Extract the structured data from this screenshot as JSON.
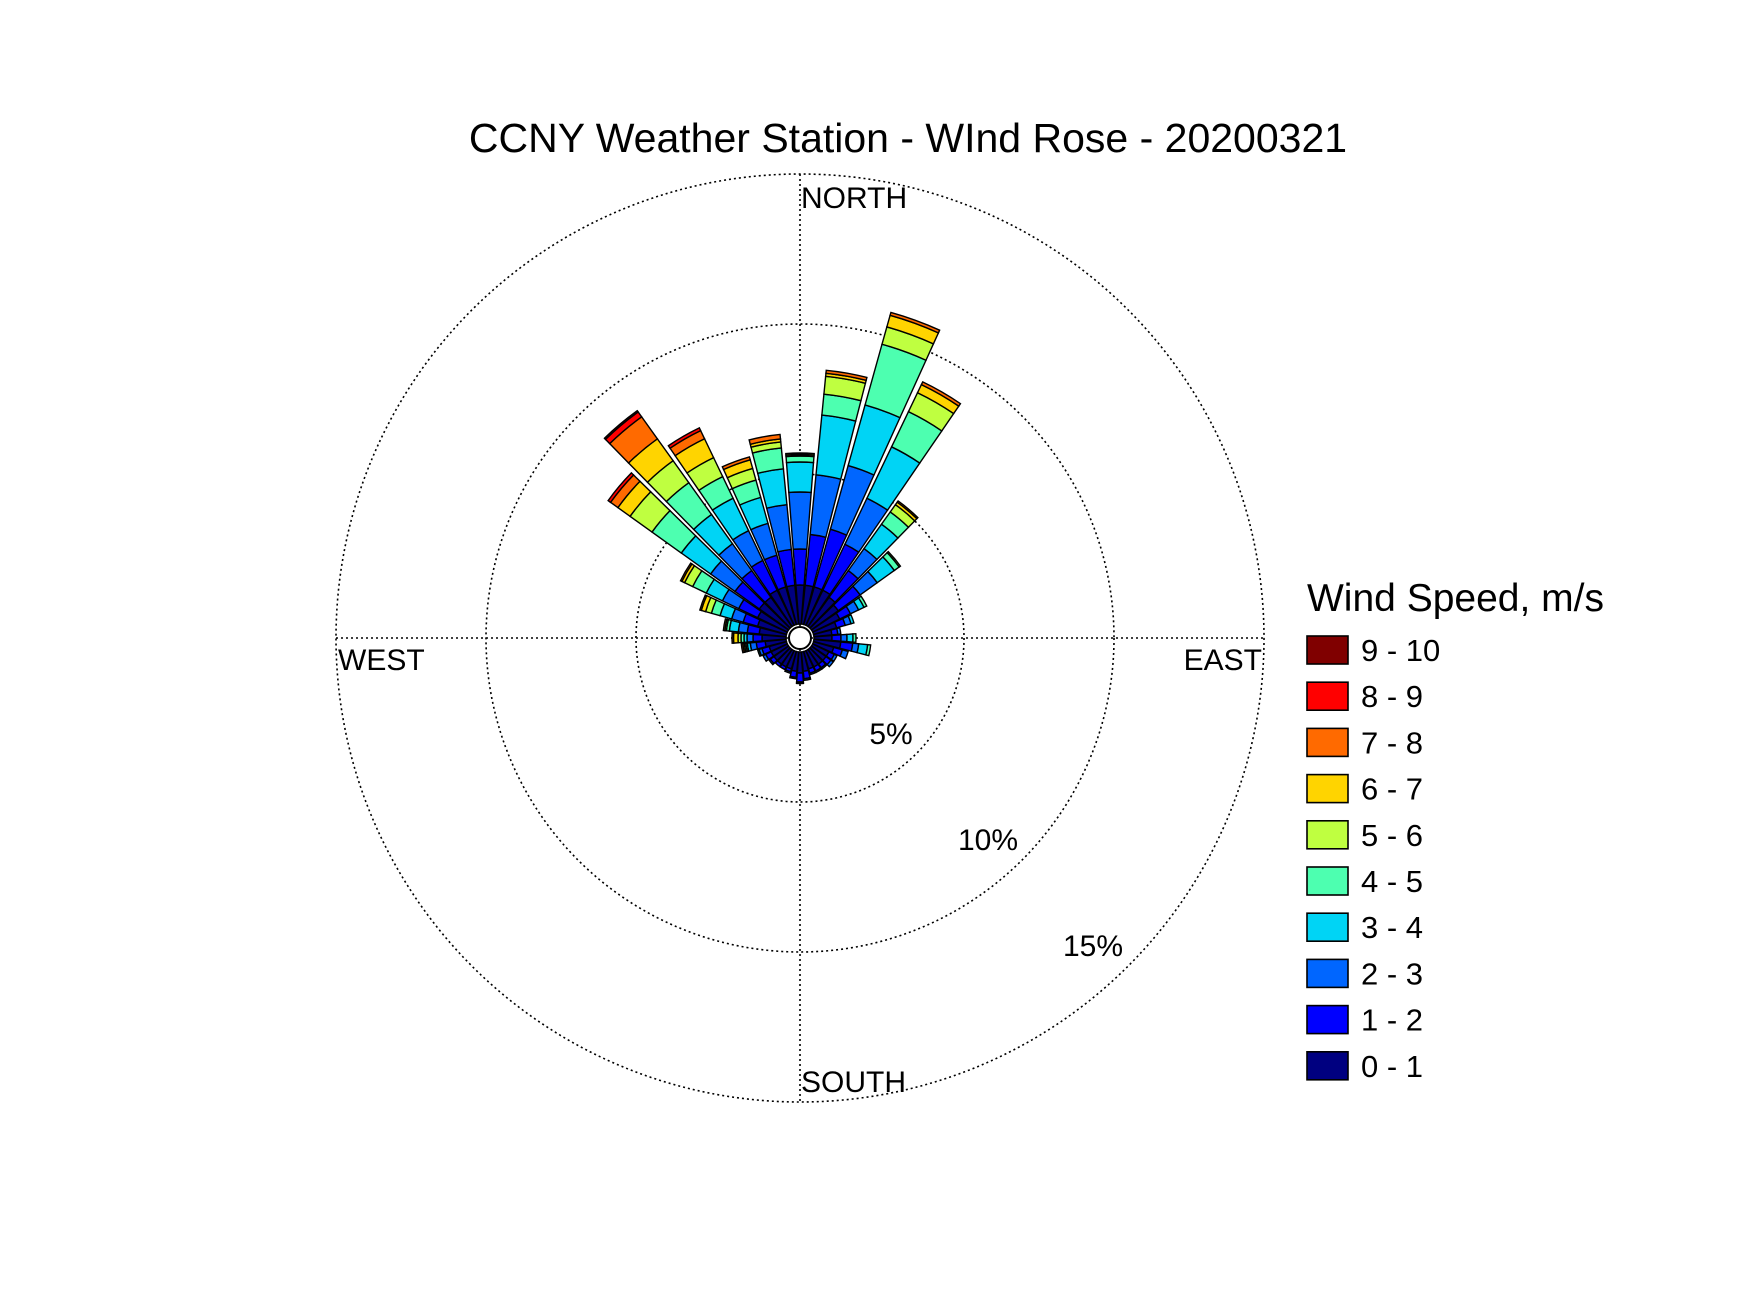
{
  "chart_data": {
    "type": "wind-rose",
    "title": "CCNY Weather Station - WInd Rose - 20200321",
    "direction_labels": {
      "north": "NORTH",
      "south": "SOUTH",
      "east": "EAST",
      "west": "WEST"
    },
    "ring_labels": [
      "5%",
      "10%",
      "15%"
    ],
    "ring_values": [
      5,
      10,
      15
    ],
    "grid": true,
    "legend": {
      "title": "Wind Speed, m/s",
      "position": "right",
      "items": [
        {
          "label": "9 - 10",
          "color": "#800000"
        },
        {
          "label": "8 - 9",
          "color": "#ff0000"
        },
        {
          "label": "7 - 8",
          "color": "#ff6a00"
        },
        {
          "label": "6 - 7",
          "color": "#ffd400"
        },
        {
          "label": "5 - 6",
          "color": "#bfff40"
        },
        {
          "label": "4 - 5",
          "color": "#4dffb0"
        },
        {
          "label": "3 - 4",
          "color": "#00d4f5"
        },
        {
          "label": "2 - 3",
          "color": "#0066ff"
        },
        {
          "label": "1 - 2",
          "color": "#0000ff"
        },
        {
          "label": "0 - 1",
          "color": "#000080"
        }
      ]
    },
    "speed_bins": [
      "0 - 1",
      "1 - 2",
      "2 - 3",
      "3 - 4",
      "4 - 5",
      "5 - 6",
      "6 - 7",
      "7 - 8",
      "8 - 9",
      "9 - 10"
    ],
    "bin_colors": [
      "#000080",
      "#0000ff",
      "#0066ff",
      "#00d4f5",
      "#4dffb0",
      "#bfff40",
      "#ffd400",
      "#ff6a00",
      "#ff0000",
      "#800000"
    ],
    "sector_width_deg": 10,
    "calm_percent": 0.5,
    "sectors": [
      {
        "dir": 0,
        "cum": [
          1.3,
          2.5,
          4.4,
          5.4,
          5.6,
          5.65,
          5.7,
          5.7,
          5.7,
          5.7
        ]
      },
      {
        "dir": 10,
        "cum": [
          1.3,
          3.0,
          5.0,
          7.0,
          7.7,
          8.3,
          8.4,
          8.5,
          8.5,
          8.5
        ]
      },
      {
        "dir": 20,
        "cum": [
          1.3,
          3.3,
          5.5,
          7.6,
          9.7,
          10.3,
          10.7,
          10.8,
          10.8,
          10.8
        ]
      },
      {
        "dir": 30,
        "cum": [
          1.3,
          3.0,
          4.7,
          6.6,
          7.9,
          8.6,
          8.9,
          9.0,
          9.0,
          9.0
        ]
      },
      {
        "dir": 40,
        "cum": [
          1.2,
          2.3,
          3.2,
          4.2,
          4.7,
          5.0,
          5.1,
          5.15,
          5.15,
          5.15
        ]
      },
      {
        "dir": 50,
        "cum": [
          1.1,
          2.0,
          2.7,
          3.4,
          3.6,
          3.65,
          3.65,
          3.65,
          3.65,
          3.65
        ]
      },
      {
        "dir": 60,
        "cum": [
          1.0,
          1.4,
          1.7,
          1.9,
          2.0,
          2.0,
          2.0,
          2.0,
          2.0,
          2.0
        ]
      },
      {
        "dir": 70,
        "cum": [
          0.8,
          1.1,
          1.3,
          1.4,
          1.4,
          1.4,
          1.4,
          1.4,
          1.4,
          1.4
        ]
      },
      {
        "dir": 80,
        "cum": [
          0.6,
          0.8,
          0.9,
          0.9,
          0.9,
          0.9,
          0.9,
          0.9,
          0.9,
          0.9
        ]
      },
      {
        "dir": 90,
        "cum": [
          0.6,
          0.9,
          1.1,
          1.3,
          1.4,
          1.4,
          1.4,
          1.4,
          1.4,
          1.4
        ]
      },
      {
        "dir": 100,
        "cum": [
          0.9,
          1.3,
          1.5,
          1.8,
          1.9,
          1.9,
          1.9,
          1.9,
          1.9,
          1.9
        ]
      },
      {
        "dir": 110,
        "cum": [
          0.7,
          1.0,
          1.2,
          1.2,
          1.2,
          1.2,
          1.2,
          1.2,
          1.2,
          1.2
        ]
      },
      {
        "dir": 120,
        "cum": [
          0.6,
          0.8,
          0.9,
          0.9,
          0.9,
          0.9,
          0.9,
          0.9,
          0.9,
          0.9
        ]
      },
      {
        "dir": 130,
        "cum": [
          0.6,
          0.8,
          0.9,
          0.9,
          0.9,
          0.9,
          0.9,
          0.9,
          0.9,
          0.9
        ]
      },
      {
        "dir": 140,
        "cum": [
          0.6,
          0.75,
          0.8,
          0.8,
          0.8,
          0.8,
          0.8,
          0.8,
          0.8,
          0.8
        ]
      },
      {
        "dir": 150,
        "cum": [
          0.6,
          0.75,
          0.8,
          0.8,
          0.8,
          0.8,
          0.8,
          0.8,
          0.8,
          0.8
        ]
      },
      {
        "dir": 160,
        "cum": [
          0.6,
          0.75,
          0.8,
          0.8,
          0.8,
          0.8,
          0.8,
          0.8,
          0.8,
          0.8
        ]
      },
      {
        "dir": 170,
        "cum": [
          0.65,
          0.9,
          0.95,
          0.95,
          0.95,
          0.95,
          0.95,
          0.95,
          0.95,
          0.95
        ]
      },
      {
        "dir": 180,
        "cum": [
          0.7,
          1.0,
          1.05,
          1.05,
          1.05,
          1.05,
          1.05,
          1.05,
          1.05,
          1.05
        ]
      },
      {
        "dir": 190,
        "cum": [
          0.65,
          0.85,
          0.9,
          0.9,
          0.9,
          0.9,
          0.9,
          0.9,
          0.9,
          0.9
        ]
      },
      {
        "dir": 200,
        "cum": [
          0.6,
          0.7,
          0.75,
          0.75,
          0.75,
          0.75,
          0.75,
          0.75,
          0.75,
          0.75
        ]
      },
      {
        "dir": 210,
        "cum": [
          0.6,
          0.7,
          0.7,
          0.7,
          0.7,
          0.7,
          0.7,
          0.7,
          0.7,
          0.7
        ]
      },
      {
        "dir": 220,
        "cum": [
          0.6,
          0.7,
          0.7,
          0.7,
          0.7,
          0.7,
          0.7,
          0.7,
          0.7,
          0.7
        ]
      },
      {
        "dir": 230,
        "cum": [
          0.6,
          0.75,
          0.8,
          0.8,
          0.8,
          0.8,
          0.8,
          0.8,
          0.8,
          0.8
        ]
      },
      {
        "dir": 240,
        "cum": [
          0.6,
          0.8,
          0.9,
          0.9,
          0.9,
          0.9,
          0.9,
          0.9,
          0.9,
          0.9
        ]
      },
      {
        "dir": 250,
        "cum": [
          0.6,
          0.85,
          0.95,
          1.0,
          1.0,
          1.0,
          1.0,
          1.0,
          1.0,
          1.0
        ]
      },
      {
        "dir": 260,
        "cum": [
          0.7,
          1.0,
          1.2,
          1.3,
          1.35,
          1.4,
          1.45,
          1.5,
          1.5,
          1.5
        ]
      },
      {
        "dir": 270,
        "cum": [
          0.8,
          1.1,
          1.3,
          1.4,
          1.5,
          1.6,
          1.75,
          1.8,
          1.8,
          1.8
        ]
      },
      {
        "dir": 280,
        "cum": [
          0.9,
          1.3,
          1.6,
          1.9,
          2.0,
          2.05,
          2.1,
          2.1,
          2.1,
          2.1
        ]
      },
      {
        "dir": 290,
        "cum": [
          1.0,
          1.5,
          1.9,
          2.3,
          2.6,
          2.8,
          2.95,
          3.0,
          3.0,
          3.0
        ]
      },
      {
        "dir": 300,
        "cum": [
          1.1,
          1.8,
          2.4,
          3.0,
          3.5,
          3.8,
          3.9,
          3.95,
          3.95,
          3.95
        ]
      },
      {
        "dir": 310,
        "cum": [
          1.2,
          2.2,
          3.2,
          4.4,
          5.6,
          6.5,
          7.0,
          7.3,
          7.4,
          7.4
        ]
      },
      {
        "dir": 320,
        "cum": [
          1.2,
          2.3,
          3.4,
          4.6,
          5.9,
          6.8,
          7.7,
          8.6,
          8.8,
          8.85
        ]
      },
      {
        "dir": 330,
        "cum": [
          1.3,
          2.4,
          3.5,
          4.7,
          5.5,
          6.2,
          6.9,
          7.2,
          7.3,
          7.3
        ]
      },
      {
        "dir": 340,
        "cum": [
          1.3,
          2.4,
          3.5,
          4.4,
          5.0,
          5.4,
          5.7,
          5.8,
          5.8,
          5.8
        ]
      },
      {
        "dir": 350,
        "cum": [
          1.3,
          2.5,
          4.0,
          5.2,
          5.9,
          6.1,
          6.2,
          6.35,
          6.35,
          6.35
        ]
      }
    ]
  }
}
